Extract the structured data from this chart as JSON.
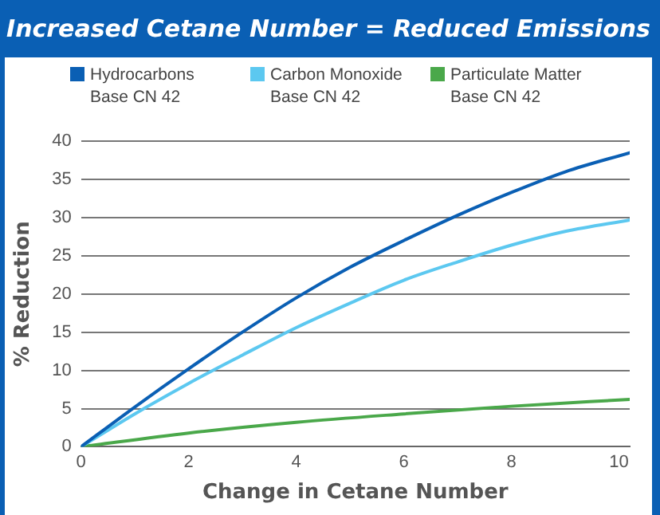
{
  "chart_data": {
    "type": "line",
    "title": "Increased Cetane Number = Reduced Emissions",
    "xlabel": "Change in Cetane Number",
    "ylabel": "% Reduction",
    "xlim": [
      0,
      10.2
    ],
    "xticks": [
      0,
      2,
      4,
      6,
      8,
      10
    ],
    "ylim": [
      0,
      40
    ],
    "yticks": [
      0,
      5,
      10,
      15,
      20,
      25,
      30,
      35,
      40
    ],
    "grid": "y",
    "legend": "top",
    "marker": "none",
    "line_style": "solid",
    "series": [
      {
        "name": "Hydrocarbons Base CN 42",
        "color": "#0a5fb4",
        "x": [
          0,
          1,
          2,
          3,
          4,
          5,
          6,
          7,
          8,
          9,
          10.2
        ],
        "values": [
          0,
          5.2,
          10.2,
          15,
          19.5,
          23.5,
          27,
          30.3,
          33.3,
          36,
          38.5
        ]
      },
      {
        "name": "Carbon Monoxide Base CN 42",
        "color": "#5cc8f0",
        "x": [
          0,
          1,
          2,
          3,
          4,
          5,
          6,
          7,
          8,
          9,
          10.2
        ],
        "values": [
          0,
          4.3,
          8.3,
          12,
          15.6,
          18.8,
          21.8,
          24.2,
          26.4,
          28.2,
          29.7
        ]
      },
      {
        "name": "Particulate Matter Base CN 42",
        "color": "#4aa84a",
        "x": [
          0,
          2,
          4,
          6,
          8,
          10.2
        ],
        "values": [
          0,
          1.8,
          3.2,
          4.3,
          5.3,
          6.2
        ]
      }
    ]
  }
}
